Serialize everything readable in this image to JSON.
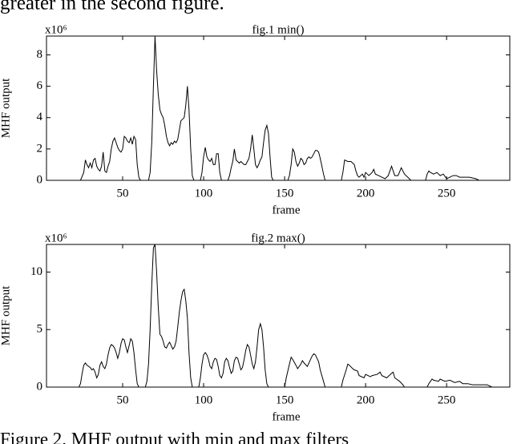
{
  "text_above": "greater in the second figure.",
  "caption": "Figure 2. MHF output with min and max filters",
  "chart_data": [
    {
      "type": "line",
      "title": "fig.1 min()",
      "xlabel": "frame",
      "ylabel": "MHF output",
      "y_multiplier": "x10⁶",
      "color": "#000000",
      "xlim": [
        3,
        289
      ],
      "xticks": [
        50,
        100,
        150,
        200,
        250
      ],
      "ylim": [
        0,
        9.2
      ],
      "yticks": [
        0,
        2,
        4,
        6,
        8
      ],
      "x": [
        3,
        24,
        26,
        27,
        28,
        29,
        30,
        31,
        32,
        33,
        34,
        35,
        36,
        37,
        38,
        39,
        40,
        41,
        42,
        43,
        44,
        45,
        46,
        47,
        48,
        49,
        50,
        51,
        52,
        53,
        54,
        55,
        56,
        57,
        58,
        59,
        60,
        61,
        66,
        67,
        68,
        69,
        70,
        71,
        72,
        73,
        74,
        75,
        76,
        77,
        78,
        79,
        80,
        81,
        82,
        83,
        84,
        85,
        86,
        87,
        88,
        89,
        90,
        91,
        92,
        93,
        94,
        98,
        99,
        100,
        101,
        102,
        103,
        104,
        105,
        106,
        107,
        108,
        109,
        110,
        111,
        115,
        116,
        117,
        118,
        119,
        120,
        121,
        122,
        123,
        124,
        125,
        126,
        127,
        128,
        129,
        130,
        131,
        132,
        133,
        134,
        135,
        136,
        137,
        138,
        139,
        140,
        141,
        142,
        143,
        152,
        153,
        154,
        155,
        156,
        157,
        158,
        159,
        160,
        161,
        162,
        163,
        164,
        165,
        166,
        167,
        168,
        169,
        170,
        171,
        172,
        173,
        174,
        175,
        185,
        186,
        187,
        189,
        191,
        193,
        194,
        195,
        196,
        198,
        199,
        200,
        201,
        202,
        204,
        205,
        206,
        208,
        210,
        212,
        214,
        215,
        216,
        217,
        218,
        220,
        222,
        223,
        224,
        226,
        228,
        237,
        238,
        239,
        240,
        242,
        244,
        246,
        248,
        250,
        252,
        254,
        256,
        258,
        264,
        268,
        270
      ],
      "values": [
        0,
        0,
        0.5,
        1.3,
        1.0,
        0.8,
        1.1,
        0.8,
        1.3,
        1.4,
        0.9,
        0.7,
        0.6,
        0.9,
        1.8,
        0.6,
        0.5,
        0.9,
        1.2,
        2.0,
        2.5,
        2.7,
        2.4,
        2.1,
        1.9,
        1.8,
        2.0,
        2.8,
        2.7,
        2.5,
        2.4,
        2.7,
        2.3,
        2.8,
        2.6,
        1.0,
        0.2,
        0,
        0,
        0.5,
        2.5,
        6,
        9.2,
        7,
        5.5,
        4.5,
        4.2,
        4.0,
        3.5,
        2.8,
        2.4,
        2.2,
        2.4,
        2.3,
        2.5,
        2.4,
        2.6,
        3.2,
        3.8,
        3.9,
        4.0,
        4.8,
        6.0,
        4.5,
        2.0,
        0.3,
        0,
        0,
        0.5,
        1.5,
        2.1,
        1.5,
        1.3,
        1.2,
        1.4,
        1.0,
        1.0,
        1.7,
        1.7,
        0.5,
        0,
        0,
        0.3,
        0.8,
        1.2,
        2.0,
        1.3,
        1.2,
        1.1,
        1.2,
        1.1,
        1.0,
        1.0,
        1.2,
        1.4,
        2.0,
        2.9,
        2.0,
        1.0,
        0.8,
        1.0,
        1.3,
        1.5,
        2.4,
        3.2,
        3.5,
        3.0,
        1.5,
        0.2,
        0,
        0,
        0.3,
        1.0,
        2.0,
        1.8,
        1.2,
        0.9,
        1.1,
        1.4,
        1.3,
        1.0,
        1.1,
        1.4,
        1.5,
        1.4,
        1.5,
        1.7,
        1.9,
        1.9,
        1.8,
        1.4,
        0.9,
        0.4,
        0,
        0,
        0.5,
        1.3,
        1.2,
        1.2,
        1.0,
        0.6,
        0.3,
        0.2,
        0.4,
        0.2,
        0.5,
        0.4,
        0.3,
        0.5,
        0.7,
        0.4,
        0.3,
        0.2,
        0.1,
        0.3,
        0.6,
        0.9,
        0.6,
        0.3,
        0.3,
        0.8,
        0.6,
        0.4,
        0.2,
        0,
        0,
        0.4,
        0.6,
        0.5,
        0.4,
        0.5,
        0.3,
        0.4,
        0.1,
        0.2,
        0.3,
        0.3,
        0.2,
        0.2,
        0.1,
        0
      ]
    },
    {
      "type": "line",
      "title": "fig.2 max()",
      "xlabel": "frame",
      "ylabel": "MHF output",
      "y_multiplier": "x10⁶",
      "color": "#000000",
      "xlim": [
        3,
        289
      ],
      "xticks": [
        50,
        100,
        150,
        200,
        250
      ],
      "ylim": [
        0,
        12.4
      ],
      "yticks": [
        0,
        5,
        10
      ],
      "x": [
        3,
        23,
        24,
        25,
        26,
        27,
        28,
        30,
        31,
        32,
        33,
        34,
        35,
        36,
        37,
        38,
        39,
        40,
        41,
        42,
        43,
        44,
        45,
        46,
        47,
        48,
        49,
        50,
        51,
        52,
        53,
        54,
        55,
        56,
        57,
        58,
        59,
        60,
        64,
        65,
        66,
        67,
        68,
        69,
        70,
        71,
        72,
        73,
        74,
        75,
        76,
        77,
        78,
        79,
        80,
        81,
        82,
        83,
        84,
        85,
        86,
        87,
        88,
        89,
        90,
        91,
        92,
        93,
        97,
        98,
        99,
        100,
        101,
        102,
        103,
        104,
        105,
        106,
        107,
        108,
        109,
        110,
        111,
        112,
        113,
        114,
        115,
        116,
        117,
        118,
        119,
        120,
        121,
        122,
        123,
        124,
        125,
        126,
        127,
        128,
        129,
        130,
        131,
        132,
        133,
        134,
        135,
        136,
        137,
        138,
        139,
        140,
        150,
        151,
        153,
        154,
        155,
        157,
        158,
        160,
        161,
        162,
        164,
        165,
        167,
        168,
        169,
        171,
        172,
        174,
        175,
        185,
        186,
        188,
        189,
        190,
        192,
        193,
        195,
        196,
        199,
        200,
        203,
        204,
        207,
        209,
        210,
        213,
        216,
        217,
        218,
        221,
        223,
        224,
        238,
        239,
        241,
        242,
        245,
        246,
        249,
        252,
        255,
        258,
        260,
        263,
        266,
        275,
        278
      ],
      "values": [
        0,
        0,
        0.3,
        1.2,
        1.9,
        2.1,
        1.9,
        1.7,
        1.5,
        1.6,
        1.3,
        0.8,
        1.1,
        1.9,
        2.2,
        1.8,
        1.6,
        2.0,
        2.8,
        3.4,
        3.7,
        3.6,
        3.4,
        3.0,
        2.5,
        3.0,
        3.8,
        4.2,
        4.1,
        3.5,
        3.0,
        3.6,
        4.2,
        4.0,
        3.0,
        1.5,
        0.3,
        0,
        0,
        0.5,
        2,
        5,
        9,
        12.1,
        12.4,
        10,
        7,
        4.6,
        4.4,
        4.0,
        3.5,
        3.4,
        3.7,
        3.9,
        3.6,
        3.3,
        3.5,
        4.0,
        5.2,
        6.5,
        7.5,
        8.3,
        8.5,
        7.5,
        6,
        3,
        0.8,
        0,
        0,
        0.8,
        2.0,
        2.8,
        3.0,
        2.8,
        2.4,
        1.8,
        1.6,
        2.2,
        2.5,
        2.4,
        1.8,
        1.0,
        0.8,
        1.2,
        2.2,
        2.5,
        2.3,
        1.7,
        1.2,
        1.4,
        2.3,
        2.6,
        2.5,
        2.0,
        1.5,
        1.7,
        2.4,
        3.2,
        3.7,
        3.5,
        2.8,
        2.0,
        1.6,
        2.2,
        3.5,
        5.0,
        5.5,
        5.0,
        3.5,
        1.5,
        0.3,
        0,
        0,
        0.8,
        2.0,
        2.6,
        2.4,
        1.9,
        1.6,
        2.0,
        2.3,
        2.1,
        1.8,
        2.1,
        2.7,
        2.9,
        2.8,
        2.2,
        1.5,
        0.5,
        0,
        0,
        0.6,
        1.5,
        2.0,
        1.9,
        1.6,
        1.5,
        1.4,
        1.0,
        0.8,
        1.1,
        0.9,
        1.0,
        1.1,
        1.3,
        1.0,
        0.8,
        1.2,
        1.3,
        0.8,
        0.5,
        0.2,
        0,
        0,
        0.3,
        0.7,
        0.6,
        0.5,
        0.7,
        0.5,
        0.6,
        0.4,
        0.5,
        0.3,
        0.3,
        0.2,
        0.2,
        0
      ]
    }
  ]
}
